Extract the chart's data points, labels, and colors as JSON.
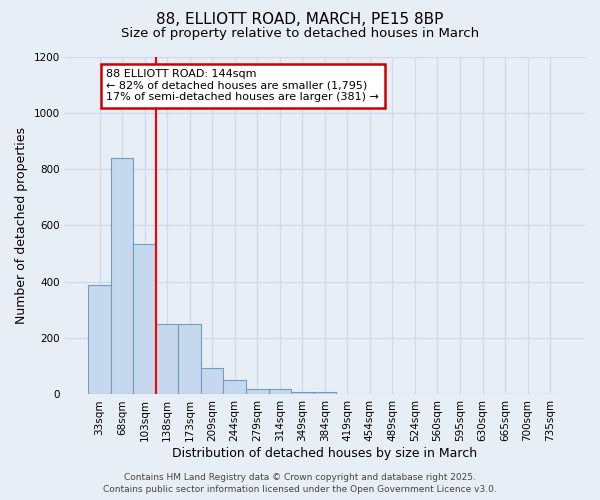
{
  "title_line1": "88, ELLIOTT ROAD, MARCH, PE15 8BP",
  "title_line2": "Size of property relative to detached houses in March",
  "xlabel": "Distribution of detached houses by size in March",
  "ylabel": "Number of detached properties",
  "categories": [
    "33sqm",
    "68sqm",
    "103sqm",
    "138sqm",
    "173sqm",
    "209sqm",
    "244sqm",
    "279sqm",
    "314sqm",
    "349sqm",
    "384sqm",
    "419sqm",
    "454sqm",
    "489sqm",
    "524sqm",
    "560sqm",
    "595sqm",
    "630sqm",
    "665sqm",
    "700sqm",
    "735sqm"
  ],
  "values": [
    390,
    840,
    535,
    250,
    250,
    95,
    50,
    20,
    20,
    10,
    10,
    0,
    0,
    0,
    0,
    0,
    0,
    0,
    0,
    0,
    0
  ],
  "bar_color": "#c5d8ed",
  "bar_edge_color": "#6a9ec5",
  "red_line_index": 3,
  "ylim": [
    0,
    1200
  ],
  "yticks": [
    0,
    200,
    400,
    600,
    800,
    1000,
    1200
  ],
  "annotation_line1": "88 ELLIOTT ROAD: 144sqm",
  "annotation_line2": "← 82% of detached houses are smaller (1,795)",
  "annotation_line3": "17% of semi-detached houses are larger (381) →",
  "annotation_box_color": "#ffffff",
  "annotation_box_edge": "#cc0000",
  "footer_line1": "Contains HM Land Registry data © Crown copyright and database right 2025.",
  "footer_line2": "Contains public sector information licensed under the Open Government Licence v3.0.",
  "background_color": "#e8eef6",
  "grid_color": "#d0d8e8",
  "title_fontsize": 11,
  "subtitle_fontsize": 9.5,
  "axis_label_fontsize": 9,
  "tick_fontsize": 7.5,
  "annotation_fontsize": 8,
  "footer_fontsize": 6.5
}
